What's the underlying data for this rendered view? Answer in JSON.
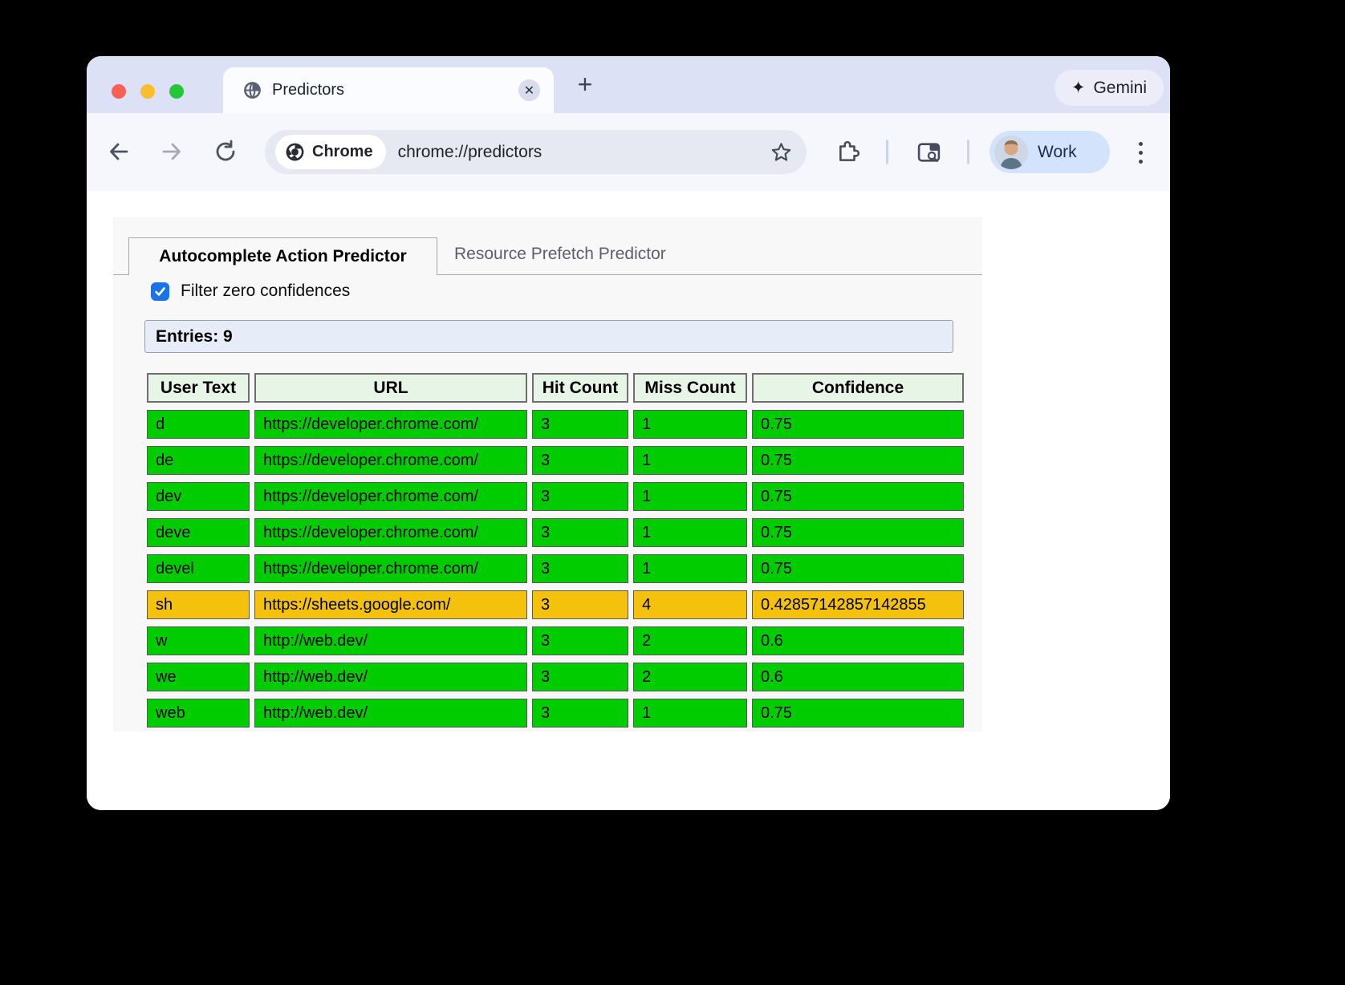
{
  "browser": {
    "tab_title": "Predictors",
    "close_tab_glyph": "✕",
    "new_tab_glyph": "+",
    "gemini": {
      "icon_glyph": "✦",
      "label": "Gemini"
    },
    "toolbar": {
      "chip_label": "Chrome",
      "url": "chrome://predictors",
      "profile_label": "Work"
    }
  },
  "page": {
    "tabs": [
      {
        "label": "Autocomplete Action Predictor",
        "active": true
      },
      {
        "label": "Resource Prefetch Predictor",
        "active": false
      }
    ],
    "filter": {
      "label": "Filter zero confidences",
      "checked": true
    },
    "entries_label": "Entries: 9",
    "table": {
      "headers": [
        "User Text",
        "URL",
        "Hit Count",
        "Miss Count",
        "Confidence"
      ],
      "rows": [
        {
          "user_text": "d",
          "url": "https://developer.chrome.com/",
          "hit": "3",
          "miss": "1",
          "confidence": "0.75",
          "color": "green"
        },
        {
          "user_text": "de",
          "url": "https://developer.chrome.com/",
          "hit": "3",
          "miss": "1",
          "confidence": "0.75",
          "color": "green"
        },
        {
          "user_text": "dev",
          "url": "https://developer.chrome.com/",
          "hit": "3",
          "miss": "1",
          "confidence": "0.75",
          "color": "green"
        },
        {
          "user_text": "deve",
          "url": "https://developer.chrome.com/",
          "hit": "3",
          "miss": "1",
          "confidence": "0.75",
          "color": "green"
        },
        {
          "user_text": "devel",
          "url": "https://developer.chrome.com/",
          "hit": "3",
          "miss": "1",
          "confidence": "0.75",
          "color": "green"
        },
        {
          "user_text": "sh",
          "url": "https://sheets.google.com/",
          "hit": "3",
          "miss": "4",
          "confidence": "0.42857142857142855",
          "color": "yellow"
        },
        {
          "user_text": "w",
          "url": "http://web.dev/",
          "hit": "3",
          "miss": "2",
          "confidence": "0.6",
          "color": "green"
        },
        {
          "user_text": "we",
          "url": "http://web.dev/",
          "hit": "3",
          "miss": "2",
          "confidence": "0.6",
          "color": "green"
        },
        {
          "user_text": "web",
          "url": "http://web.dev/",
          "hit": "3",
          "miss": "1",
          "confidence": "0.75",
          "color": "green"
        }
      ]
    },
    "colors": {
      "green": "#00cc00",
      "yellow": "#f4c20d"
    }
  }
}
